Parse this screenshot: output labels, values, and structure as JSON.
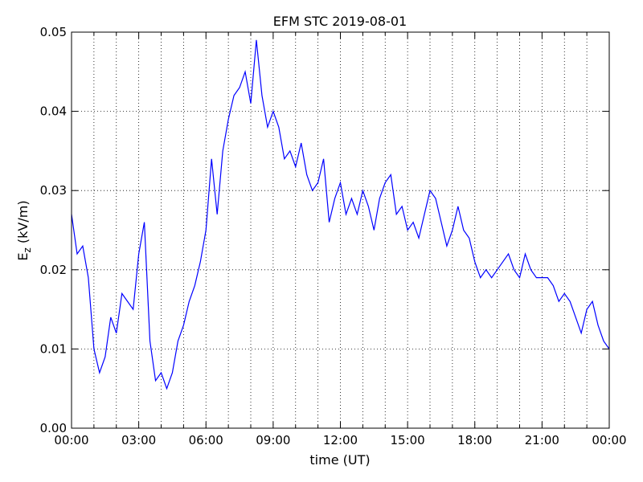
{
  "chart_data": {
    "type": "line",
    "title": "EFM STC    2019-08-01",
    "xlabel": "time (UT)",
    "ylabel": [
      "E",
      "z",
      " (kV/m)"
    ],
    "x": [
      0,
      0.25,
      0.5,
      0.75,
      1,
      1.25,
      1.5,
      1.75,
      2,
      2.25,
      2.5,
      2.75,
      3,
      3.25,
      3.5,
      3.75,
      4,
      4.25,
      4.5,
      4.75,
      5,
      5.25,
      5.5,
      5.75,
      6,
      6.25,
      6.5,
      6.75,
      7,
      7.25,
      7.5,
      7.75,
      8,
      8.25,
      8.5,
      8.75,
      9,
      9.25,
      9.5,
      9.75,
      10,
      10.25,
      10.5,
      10.75,
      11,
      11.25,
      11.5,
      11.75,
      12,
      12.25,
      12.5,
      12.75,
      13,
      13.25,
      13.5,
      13.75,
      14,
      14.25,
      14.5,
      14.75,
      15,
      15.25,
      15.5,
      15.75,
      16,
      16.25,
      16.5,
      16.75,
      17,
      17.25,
      17.5,
      17.75,
      18,
      18.25,
      18.5,
      18.75,
      19,
      19.25,
      19.5,
      19.75,
      20,
      20.25,
      20.5,
      20.75,
      21,
      21.25,
      21.5,
      21.75,
      22,
      22.25,
      22.5,
      22.75,
      23,
      23.25,
      23.5,
      23.75,
      24
    ],
    "series": [
      {
        "name": "Ez",
        "color": "#0000ff",
        "values": [
          0.027,
          0.022,
          0.023,
          0.019,
          0.01,
          0.007,
          0.009,
          0.014,
          0.012,
          0.017,
          0.016,
          0.015,
          0.022,
          0.026,
          0.011,
          0.006,
          0.007,
          0.005,
          0.007,
          0.011,
          0.013,
          0.016,
          0.018,
          0.021,
          0.025,
          0.034,
          0.027,
          0.035,
          0.039,
          0.042,
          0.043,
          0.045,
          0.041,
          0.049,
          0.042,
          0.038,
          0.04,
          0.038,
          0.034,
          0.035,
          0.033,
          0.036,
          0.032,
          0.03,
          0.031,
          0.034,
          0.026,
          0.029,
          0.031,
          0.027,
          0.029,
          0.027,
          0.03,
          0.028,
          0.025,
          0.029,
          0.031,
          0.032,
          0.027,
          0.028,
          0.025,
          0.026,
          0.024,
          0.027,
          0.03,
          0.029,
          0.026,
          0.023,
          0.025,
          0.028,
          0.025,
          0.024,
          0.021,
          0.019,
          0.02,
          0.019,
          0.02,
          0.021,
          0.022,
          0.02,
          0.019,
          0.022,
          0.02,
          0.019,
          0.019,
          0.019,
          0.018,
          0.016,
          0.017,
          0.016,
          0.014,
          0.012,
          0.015,
          0.016,
          0.013,
          0.011,
          0.01
        ]
      }
    ],
    "xlim": [
      0,
      24
    ],
    "xticks": [
      {
        "value": 0,
        "label": "00:00"
      },
      {
        "value": 3,
        "label": "03:00"
      },
      {
        "value": 6,
        "label": "06:00"
      },
      {
        "value": 9,
        "label": "09:00"
      },
      {
        "value": 12,
        "label": "12:00"
      },
      {
        "value": 15,
        "label": "15:00"
      },
      {
        "value": 18,
        "label": "18:00"
      },
      {
        "value": 21,
        "label": "21:00"
      },
      {
        "value": 24,
        "label": "00:00"
      }
    ],
    "xminorticks": [
      1,
      2,
      4,
      5,
      7,
      8,
      10,
      11,
      13,
      14,
      16,
      17,
      19,
      20,
      22,
      23
    ],
    "ylim": [
      0,
      0.05
    ],
    "yticks": [
      {
        "value": 0,
        "label": "0.00"
      },
      {
        "value": 0.01,
        "label": "0.01"
      },
      {
        "value": 0.02,
        "label": "0.02"
      },
      {
        "value": 0.03,
        "label": "0.03"
      },
      {
        "value": 0.04,
        "label": "0.04"
      },
      {
        "value": 0.05,
        "label": "0.05"
      }
    ],
    "grid": true
  }
}
